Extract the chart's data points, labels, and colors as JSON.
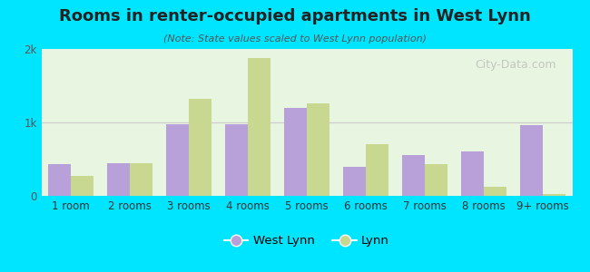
{
  "title": "Rooms in renter-occupied apartments in West Lynn",
  "subtitle": "(Note: State values scaled to West Lynn population)",
  "categories": [
    "1 room",
    "2 rooms",
    "3 rooms",
    "4 rooms",
    "5 rooms",
    "6 rooms",
    "7 rooms",
    "8 rooms",
    "9+ rooms"
  ],
  "west_lynn": [
    430,
    450,
    980,
    970,
    1200,
    390,
    560,
    600,
    960
  ],
  "lynn": [
    270,
    440,
    1320,
    1880,
    1260,
    700,
    430,
    120,
    30
  ],
  "west_lynn_color": "#b8a0d8",
  "lynn_color": "#c8d890",
  "background_outer": "#00e5ff",
  "background_inner": "#e8f5e0",
  "ylim": [
    0,
    2000
  ],
  "yticks": [
    0,
    1000,
    2000
  ],
  "ytick_labels": [
    "0",
    "1k",
    "2k"
  ],
  "bar_width": 0.38,
  "watermark": "City-Data.com",
  "legend_west_lynn": "West Lynn",
  "legend_lynn": "Lynn"
}
